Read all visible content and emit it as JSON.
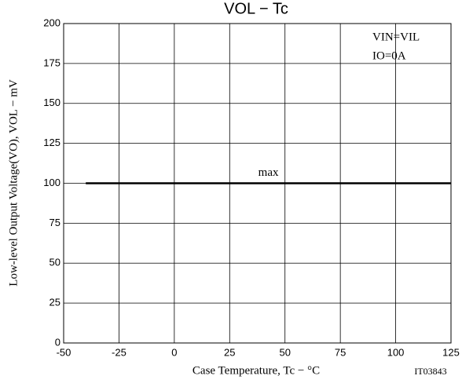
{
  "chart_data": {
    "type": "line",
    "title": "VOL − Tc",
    "x_label": "Case Temperature, Tc − °C",
    "y_label": "Low-level Output Voltage(VO), VOL − mV",
    "annotations": [
      "VIN=VIL",
      "IO=0A"
    ],
    "code": "IT03843",
    "x": [
      -40,
      125
    ],
    "series": [
      {
        "name": "max",
        "color": "#000000",
        "values": [
          100,
          100
        ]
      }
    ],
    "xlim": [
      -50,
      125
    ],
    "xticks": [
      -50,
      -25,
      0,
      25,
      50,
      75,
      100,
      125
    ],
    "ylim": [
      0,
      200
    ],
    "yticks": [
      0,
      25,
      50,
      75,
      100,
      125,
      150,
      175,
      200
    ],
    "grid": true
  }
}
